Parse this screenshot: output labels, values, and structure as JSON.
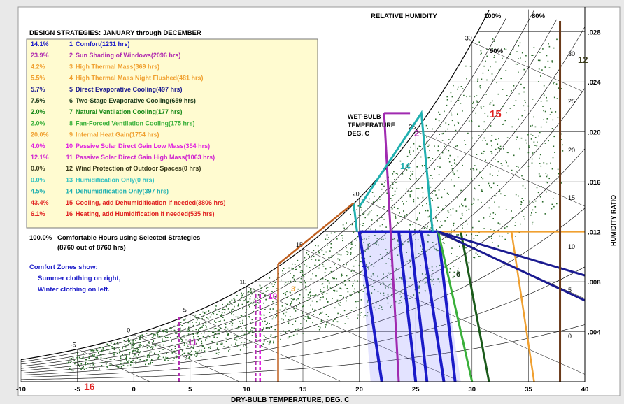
{
  "chart_data": {
    "type": "scatter",
    "title": "",
    "xlabel": "DRY-BULB TEMPERATURE, DEG. C",
    "ylabel": "HUMIDITY RATIO",
    "xlim": [
      -10,
      40
    ],
    "ylim": [
      0,
      0.03
    ],
    "x_ticks": [
      "-10",
      "-5",
      "0",
      "5",
      "10",
      "15",
      "20",
      "25",
      "30",
      "35",
      "40"
    ],
    "y_ticks": [
      ".004",
      ".008",
      ".012",
      ".016",
      ".020",
      ".024",
      ".028"
    ],
    "top_labels": {
      "relative_humidity": "RELATIVE HUMIDITY",
      "rh100": "100%",
      "rh80": "80%",
      "rh90": "90%"
    },
    "wet_bulb_label": [
      "WET-BULB",
      "TEMPERATURE",
      "DEG. C"
    ],
    "wet_bulb_values": [
      "-5",
      "0",
      "5",
      "10",
      "15",
      "20",
      "25",
      "30"
    ],
    "right_wb_values": [
      "30",
      "25",
      "20",
      "15",
      "10",
      "5",
      "0"
    ],
    "legend_header": "DESIGN STRATEGIES:  JANUARY through DECEMBER",
    "strategies": [
      {
        "pct": "14.1%",
        "num": "1",
        "text": "Comfort(1231 hrs)",
        "color": "#1a1ac8"
      },
      {
        "pct": "23.9%",
        "num": "2",
        "text": "Sun Shading of Windows(2096 hrs)",
        "color": "#b02ab0"
      },
      {
        "pct": "4.2%",
        "num": "3",
        "text": "High Thermal Mass(369 hrs)",
        "color": "#f0a030"
      },
      {
        "pct": "5.5%",
        "num": "4",
        "text": "High Thermal Mass Night Flushed(481 hrs)",
        "color": "#f0a030"
      },
      {
        "pct": "5.7%",
        "num": "5",
        "text": "Direct Evaporative Cooling(497 hrs)",
        "color": "#1a1a90"
      },
      {
        "pct": "7.5%",
        "num": "6",
        "text": "Two-Stage Evaporative Cooling(659 hrs)",
        "color": "#1a3a1a"
      },
      {
        "pct": "2.0%",
        "num": "7",
        "text": "Natural Ventilation Cooling(177 hrs)",
        "color": "#1a8a1a"
      },
      {
        "pct": "2.0%",
        "num": "8",
        "text": "Fan-Forced Ventilation Cooling(175 hrs)",
        "color": "#3ab03a"
      },
      {
        "pct": "20.0%",
        "num": "9",
        "text": "Internal Heat Gain(1754 hrs)",
        "color": "#f0a030"
      },
      {
        "pct": "4.0%",
        "num": "10",
        "text": "Passive Solar Direct Gain Low Mass(354 hrs)",
        "color": "#e020e0"
      },
      {
        "pct": "12.1%",
        "num": "11",
        "text": "Passive Solar Direct Gain High Mass(1063 hrs)",
        "color": "#d020d0"
      },
      {
        "pct": "0.0%",
        "num": "12",
        "text": "Wind Protection of Outdoor Spaces(0 hrs)",
        "color": "#3a3a1a"
      },
      {
        "pct": "0.0%",
        "num": "13",
        "text": "Humidification Only(0 hrs)",
        "color": "#30c0c0"
      },
      {
        "pct": "4.5%",
        "num": "14",
        "text": "Dehumidification Only(397 hrs)",
        "color": "#20b0b0"
      },
      {
        "pct": "43.4%",
        "num": "15",
        "text": "Cooling, add Dehumidification if needed(3806 hrs)",
        "color": "#e02020"
      },
      {
        "pct": "6.1%",
        "num": "16",
        "text": "Heating, add Humidification if needed(535 hrs)",
        "color": "#e02020"
      }
    ],
    "summary_pct": "100.0%",
    "summary_line1": "Comfortable Hours using Selected Strategies",
    "summary_line2": "(8760 out of 8760 hrs)",
    "comfort_notes": [
      "Comfort Zones show:",
      "Summer clothing on right,",
      "Winter clothing on left."
    ],
    "zone_labels": {
      "z15": "15",
      "z14": "14",
      "z11": "11",
      "z16": "16",
      "z10": "10",
      "z1": "1",
      "z3": "3",
      "z6": "6",
      "z2": "2",
      "z12": "12"
    }
  }
}
